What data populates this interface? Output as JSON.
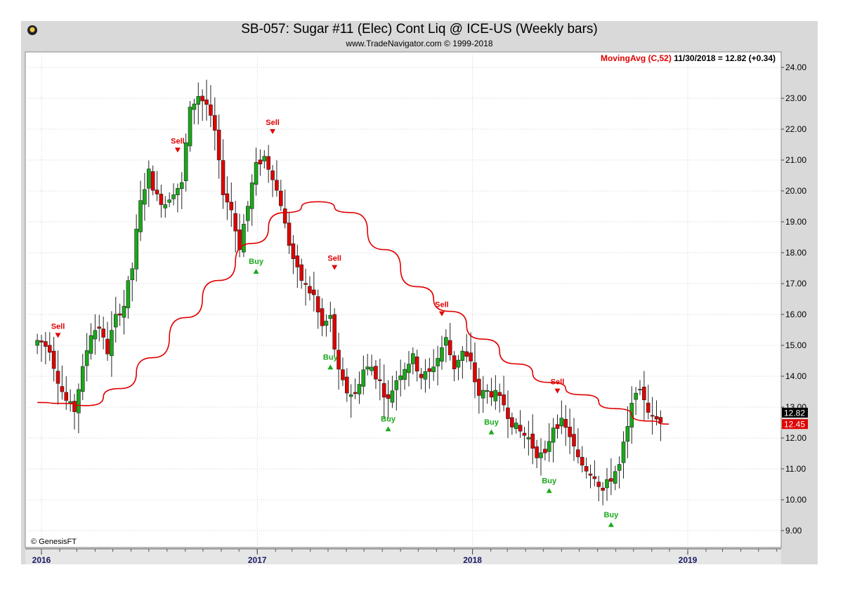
{
  "header": {
    "title": "SB-057:  Sugar #11 (Elec) Cont Liq @ ICE-US  (Weekly bars)",
    "subtitle": "www.TradeNavigator.com © 1999-2018",
    "credit": "© GenesisFT"
  },
  "legend": {
    "ma_label": "MovingAvg (C,52)",
    "ma_value": "11/30/2018 = 12.82 (+0.34)"
  },
  "chart_data": {
    "type": "candlestick",
    "title": "SB-057:  Sugar #11 (Elec) Cont Liq @ ICE-US  (Weekly bars)",
    "yaxis": {
      "min": 8.6,
      "max": 24.2,
      "position": "right",
      "ticks": [
        "9.00",
        "10.00",
        "11.00",
        "12.00",
        "13.00",
        "14.00",
        "15.00",
        "16.00",
        "17.00",
        "18.00",
        "19.00",
        "20.00",
        "21.00",
        "22.00",
        "23.00",
        "24.00"
      ]
    },
    "xaxis": {
      "labels": [
        {
          "label": "2016",
          "date": "2016-01-01"
        },
        {
          "label": "2017",
          "date": "2017-01-01"
        },
        {
          "label": "2018",
          "date": "2018-01-01"
        },
        {
          "label": "2019",
          "date": "2019-01-01"
        }
      ]
    },
    "grid": true,
    "colors": {
      "up": "#1aa81a",
      "down": "#e00000",
      "ma": "#e00000",
      "buy": "#1aa81a",
      "sell": "#e00000"
    },
    "price_labels": [
      {
        "value": 12.82,
        "text": "12.82",
        "bg": "#000000"
      },
      {
        "value": 12.45,
        "text": "12.45",
        "bg": "#e00000"
      }
    ],
    "closes_biweekly": [
      {
        "date": "2015-12-25",
        "close": 15.2
      },
      {
        "date": "2016-01-08",
        "close": 15.1
      },
      {
        "date": "2016-01-22",
        "close": 14.9
      },
      {
        "date": "2016-02-05",
        "close": 13.9
      },
      {
        "date": "2016-02-19",
        "close": 13.2
      },
      {
        "date": "2016-03-04",
        "close": 12.9
      },
      {
        "date": "2016-03-18",
        "close": 14.2
      },
      {
        "date": "2016-04-01",
        "close": 15.4
      },
      {
        "date": "2016-04-15",
        "close": 15.6
      },
      {
        "date": "2016-04-29",
        "close": 14.8
      },
      {
        "date": "2016-05-13",
        "close": 15.9
      },
      {
        "date": "2016-05-27",
        "close": 16.3
      },
      {
        "date": "2016-06-10",
        "close": 17.5
      },
      {
        "date": "2016-06-24",
        "close": 19.6
      },
      {
        "date": "2016-07-08",
        "close": 20.6
      },
      {
        "date": "2016-07-22",
        "close": 19.8
      },
      {
        "date": "2016-08-05",
        "close": 19.6
      },
      {
        "date": "2016-08-19",
        "close": 20.0
      },
      {
        "date": "2016-09-02",
        "close": 20.2
      },
      {
        "date": "2016-09-16",
        "close": 22.6
      },
      {
        "date": "2016-09-30",
        "close": 23.1
      },
      {
        "date": "2016-10-14",
        "close": 22.8
      },
      {
        "date": "2016-10-28",
        "close": 21.9
      },
      {
        "date": "2016-11-11",
        "close": 20.0
      },
      {
        "date": "2016-11-25",
        "close": 19.4
      },
      {
        "date": "2016-12-09",
        "close": 18.2
      },
      {
        "date": "2016-12-23",
        "close": 19.5
      },
      {
        "date": "2017-01-06",
        "close": 20.8
      },
      {
        "date": "2017-01-20",
        "close": 21.1
      },
      {
        "date": "2017-02-03",
        "close": 20.5
      },
      {
        "date": "2017-02-17",
        "close": 19.6
      },
      {
        "date": "2017-03-03",
        "close": 18.3
      },
      {
        "date": "2017-03-17",
        "close": 17.4
      },
      {
        "date": "2017-03-31",
        "close": 16.9
      },
      {
        "date": "2017-04-14",
        "close": 16.6
      },
      {
        "date": "2017-04-28",
        "close": 15.6
      },
      {
        "date": "2017-05-12",
        "close": 15.9
      },
      {
        "date": "2017-05-26",
        "close": 14.1
      },
      {
        "date": "2017-06-09",
        "close": 13.5
      },
      {
        "date": "2017-06-23",
        "close": 13.4
      },
      {
        "date": "2017-07-07",
        "close": 14.2
      },
      {
        "date": "2017-07-21",
        "close": 14.3
      },
      {
        "date": "2017-08-04",
        "close": 13.8
      },
      {
        "date": "2017-08-18",
        "close": 13.2
      },
      {
        "date": "2017-09-01",
        "close": 13.9
      },
      {
        "date": "2017-09-15",
        "close": 14.3
      },
      {
        "date": "2017-09-29",
        "close": 14.6
      },
      {
        "date": "2017-10-13",
        "close": 14.0
      },
      {
        "date": "2017-10-27",
        "close": 14.1
      },
      {
        "date": "2017-11-10",
        "close": 14.6
      },
      {
        "date": "2017-11-24",
        "close": 15.2
      },
      {
        "date": "2017-12-08",
        "close": 14.3
      },
      {
        "date": "2017-12-22",
        "close": 14.8
      },
      {
        "date": "2018-01-05",
        "close": 14.4
      },
      {
        "date": "2018-01-19",
        "close": 13.4
      },
      {
        "date": "2018-02-02",
        "close": 13.5
      },
      {
        "date": "2018-02-16",
        "close": 13.4
      },
      {
        "date": "2018-03-02",
        "close": 13.1
      },
      {
        "date": "2018-03-16",
        "close": 12.5
      },
      {
        "date": "2018-03-30",
        "close": 12.2
      },
      {
        "date": "2018-04-13",
        "close": 12.0
      },
      {
        "date": "2018-04-27",
        "close": 11.5
      },
      {
        "date": "2018-05-11",
        "close": 11.4
      },
      {
        "date": "2018-05-25",
        "close": 12.4
      },
      {
        "date": "2018-06-08",
        "close": 12.5
      },
      {
        "date": "2018-06-22",
        "close": 12.1
      },
      {
        "date": "2018-07-06",
        "close": 11.3
      },
      {
        "date": "2018-07-20",
        "close": 11.0
      },
      {
        "date": "2018-08-03",
        "close": 10.8
      },
      {
        "date": "2018-08-17",
        "close": 10.3
      },
      {
        "date": "2018-08-31",
        "close": 10.7
      },
      {
        "date": "2018-09-14",
        "close": 11.1
      },
      {
        "date": "2018-09-28",
        "close": 12.3
      },
      {
        "date": "2018-10-12",
        "close": 13.6
      },
      {
        "date": "2018-10-26",
        "close": 13.3
      },
      {
        "date": "2018-11-09",
        "close": 12.6
      },
      {
        "date": "2018-11-23",
        "close": 12.6
      }
    ],
    "moving_average_52": [
      {
        "date": "2015-12-25",
        "value": 13.15
      },
      {
        "date": "2016-02-05",
        "value": 13.12
      },
      {
        "date": "2016-03-18",
        "value": 13.05
      },
      {
        "date": "2016-05-13",
        "value": 13.6
      },
      {
        "date": "2016-07-08",
        "value": 14.6
      },
      {
        "date": "2016-09-02",
        "value": 15.9
      },
      {
        "date": "2016-10-28",
        "value": 17.1
      },
      {
        "date": "2016-12-23",
        "value": 18.3
      },
      {
        "date": "2017-02-17",
        "value": 19.3
      },
      {
        "date": "2017-04-14",
        "value": 19.65
      },
      {
        "date": "2017-06-09",
        "value": 19.3
      },
      {
        "date": "2017-08-04",
        "value": 18.1
      },
      {
        "date": "2017-09-29",
        "value": 16.9
      },
      {
        "date": "2017-11-24",
        "value": 16.1
      },
      {
        "date": "2018-01-19",
        "value": 15.2
      },
      {
        "date": "2018-03-16",
        "value": 14.4
      },
      {
        "date": "2018-05-11",
        "value": 13.8
      },
      {
        "date": "2018-07-06",
        "value": 13.4
      },
      {
        "date": "2018-08-31",
        "value": 12.95
      },
      {
        "date": "2018-10-26",
        "value": 12.55
      },
      {
        "date": "2018-11-30",
        "value": 12.45
      }
    ],
    "signals": [
      {
        "type": "Sell",
        "label": "Sell",
        "date": "2016-01-29",
        "value": 15.4
      },
      {
        "type": "Sell",
        "label": "Sell",
        "date": "2016-08-19",
        "value": 21.4
      },
      {
        "type": "Buy",
        "label": "Buy",
        "date": "2016-12-30",
        "value": 17.5
      },
      {
        "type": "Sell",
        "label": "Sell",
        "date": "2017-01-27",
        "value": 22.0
      },
      {
        "type": "Sell",
        "label": "Sell",
        "date": "2017-05-12",
        "value": 17.6
      },
      {
        "type": "Buy",
        "label": "Buy",
        "date": "2017-05-05",
        "value": 14.4
      },
      {
        "type": "Buy",
        "label": "Buy",
        "date": "2017-08-11",
        "value": 12.4
      },
      {
        "type": "Sell",
        "label": "Sell",
        "date": "2017-11-10",
        "value": 16.1
      },
      {
        "type": "Buy",
        "label": "Buy",
        "date": "2018-02-02",
        "value": 12.3
      },
      {
        "type": "Buy",
        "label": "Buy",
        "date": "2018-05-11",
        "value": 10.4
      },
      {
        "type": "Sell",
        "label": "Sell",
        "date": "2018-05-25",
        "value": 13.6
      },
      {
        "type": "Buy",
        "label": "Buy",
        "date": "2018-08-24",
        "value": 9.3
      }
    ]
  }
}
